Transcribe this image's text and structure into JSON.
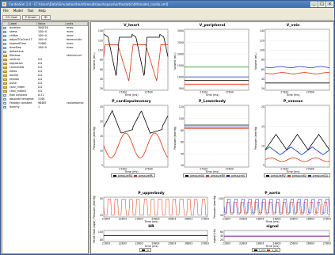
{
  "window": {
    "title": "CardioSim 1.0 - [C:\\Users\\Data\\Simulation\\heart\\results\\workspace\\orthostatic\\tilt\\model_cardio.xml]",
    "minimize": "_",
    "maximize": "□",
    "close": "x"
  },
  "menu": {
    "items": [
      "File",
      "Model",
      "Tool",
      "Help"
    ]
  },
  "toolbar": {
    "buttons": [
      "CO Coef",
      "P Smart",
      "ID"
    ]
  },
  "sidebar": {
    "headers": [
      "",
      "Label",
      "Value",
      "units"
    ],
    "rows": [
      {
        "icon": "leaf",
        "label": "duration",
        "value": "300016",
        "units": "msec"
      },
      {
        "icon": "leaf",
        "label": "stress",
        "value": "100+0",
        "units": "msec"
      },
      {
        "icon": "leaf",
        "label": "shiftau",
        "value": "100+0",
        "units": "msec"
      },
      {
        "icon": "leaf",
        "label": "adjustTOsOver17",
        "value": "100+0",
        "units": "femoral-bhr"
      },
      {
        "icon": "leaf",
        "label": "elapsedTime",
        "value": "31960",
        "units": "msec"
      },
      {
        "icon": "leaf",
        "label": "timeStep",
        "value": "100+0",
        "units": "msec"
      },
      {
        "icon": "leaf",
        "label": "deltaxtime",
        "value": "",
        "units": ""
      },
      {
        "icon": "folder",
        "label": "fileshow",
        "value": "",
        "units": "stimulus-ml"
      },
      {
        "icon": "folder",
        "label": "ventrcle",
        "value": "0.0",
        "units": ""
      },
      {
        "icon": "folder",
        "label": "regulation",
        "value": "0.0",
        "units": ""
      },
      {
        "icon": "folder",
        "label": "chemoreflx",
        "value": "0.0",
        "units": ""
      },
      {
        "icon": "folder",
        "label": "tubes",
        "value": "0.0",
        "units": ""
      },
      {
        "icon": "folder",
        "label": "auxilla",
        "value": "0.0",
        "units": ""
      },
      {
        "icon": "folder",
        "label": "resistor",
        "value": "0.0",
        "units": ""
      },
      {
        "icon": "folder",
        "label": "pulse",
        "value": "0.0",
        "units": ""
      },
      {
        "icon": "folder",
        "label": "conv_meter",
        "value": "0.0",
        "units": ""
      },
      {
        "icon": "folder",
        "label": "conv_meter2",
        "value": "0.0",
        "units": ""
      },
      {
        "icon": "leaf",
        "label": "flow constant",
        "value": "8.31",
        "units": ""
      },
      {
        "icon": "leaf",
        "label": "absolute temperat",
        "value": "310K",
        "units": ""
      },
      {
        "icon": "leaf",
        "label": "Faraday constant",
        "value": "96485",
        "units": "coulomb/mol"
      },
      {
        "icon": "leaf",
        "label": "dummy",
        "value": "1",
        "units": ""
      }
    ]
  },
  "colors": {
    "black": "#000000",
    "red": "#e03010",
    "blue": "#1030c0",
    "green": "#20a020",
    "purple": "#8030a0"
  },
  "plots": {
    "v_heart": {
      "title": "V_heart",
      "ylabel": "Volume (mL)",
      "xlabel": "Time (ms)",
      "yticks": [
        "140",
        "120",
        "100",
        "80",
        "60",
        "40",
        "20"
      ],
      "xticks": [
        "27300",
        "27600"
      ]
    },
    "v_peripheral": {
      "title": "V_peripheral",
      "ylabel": "Volume (mL)",
      "xlabel": "Time (ms)",
      "yticks": [
        "3000",
        "2500",
        "2000",
        "1500",
        "1000",
        "500"
      ],
      "xticks": [
        "27300",
        "27600"
      ]
    },
    "v_vein": {
      "title": "V_vein",
      "ylabel": "Volume (mL)",
      "xlabel": "Time (ms)",
      "yticks": [
        "140",
        "120",
        "100",
        "80",
        "60",
        "40",
        "20"
      ],
      "xticks": [
        "27300",
        "27600"
      ]
    },
    "p_cardiopulmonary": {
      "title": "P_cardiopulmonary",
      "ylabel": "Pressure (mmHg)",
      "xlabel": "Time (ms)",
      "yticks": [
        "25",
        "20",
        "15",
        "10",
        "5"
      ],
      "xticks": [
        "27300",
        "27600"
      ],
      "legend": [
        "pressureRA",
        "pressurePA"
      ]
    },
    "p_lowerbody": {
      "title": "P_Lowerbody",
      "ylabel": "Pressure (mmHg)",
      "xlabel": "Time (ms)",
      "yticks": [
        "120",
        "100",
        "80",
        "60",
        "40",
        "20"
      ],
      "xticks": [
        "27300",
        "27600"
      ],
      "legend": [
        "pressureAV",
        "pressureRV",
        "pressureLV"
      ]
    },
    "p_venous": {
      "title": "P_venous",
      "ylabel": "Pressure (mmHg)",
      "xlabel": "Time (ms)",
      "yticks": [
        "20",
        "15",
        "10",
        "5"
      ],
      "xticks": [
        "27300",
        "27600"
      ],
      "legend": [
        "pressureMV",
        "pressureAV",
        "pressureSAL"
      ]
    },
    "p_upperbody": {
      "title": "P_upperbody",
      "ylabel": "Pressure (mmHg)",
      "xlabel": "Time (ms)",
      "yticks": [
        "50",
        "25"
      ],
      "xticks": [
        "21803",
        "22803",
        "23803",
        "24803",
        "25803",
        "26803",
        "27803"
      ]
    },
    "p_aorta": {
      "title": "P_aorta",
      "ylabel": "Pressure (mmHg)",
      "xlabel": "Time (ms)",
      "yticks": [
        "100",
        "50"
      ],
      "xticks": [
        "21803",
        "22803",
        "23803",
        "24803",
        "25803",
        "26803",
        "27803"
      ]
    },
    "hr": {
      "title": "HR",
      "ylabel": "Heart Rate (bpm)",
      "xlabel": "Time (ms)",
      "yticks": [
        "100",
        "80"
      ],
      "xticks": [
        "21803",
        "22803",
        "23803",
        "24803",
        "25803",
        "26803",
        "27803"
      ],
      "legend": [
        "hr"
      ]
    },
    "signal": {
      "title": "signal",
      "ylabel": "signal (Hz)",
      "xlabel": "Time (ms)",
      "yticks": [
        "60",
        "40",
        "20"
      ],
      "xticks": [
        "21803",
        "22803",
        "23803",
        "24803",
        "25803",
        "26803",
        "27803"
      ],
      "legend": [
        "s_mu",
        "s_ao"
      ]
    }
  }
}
